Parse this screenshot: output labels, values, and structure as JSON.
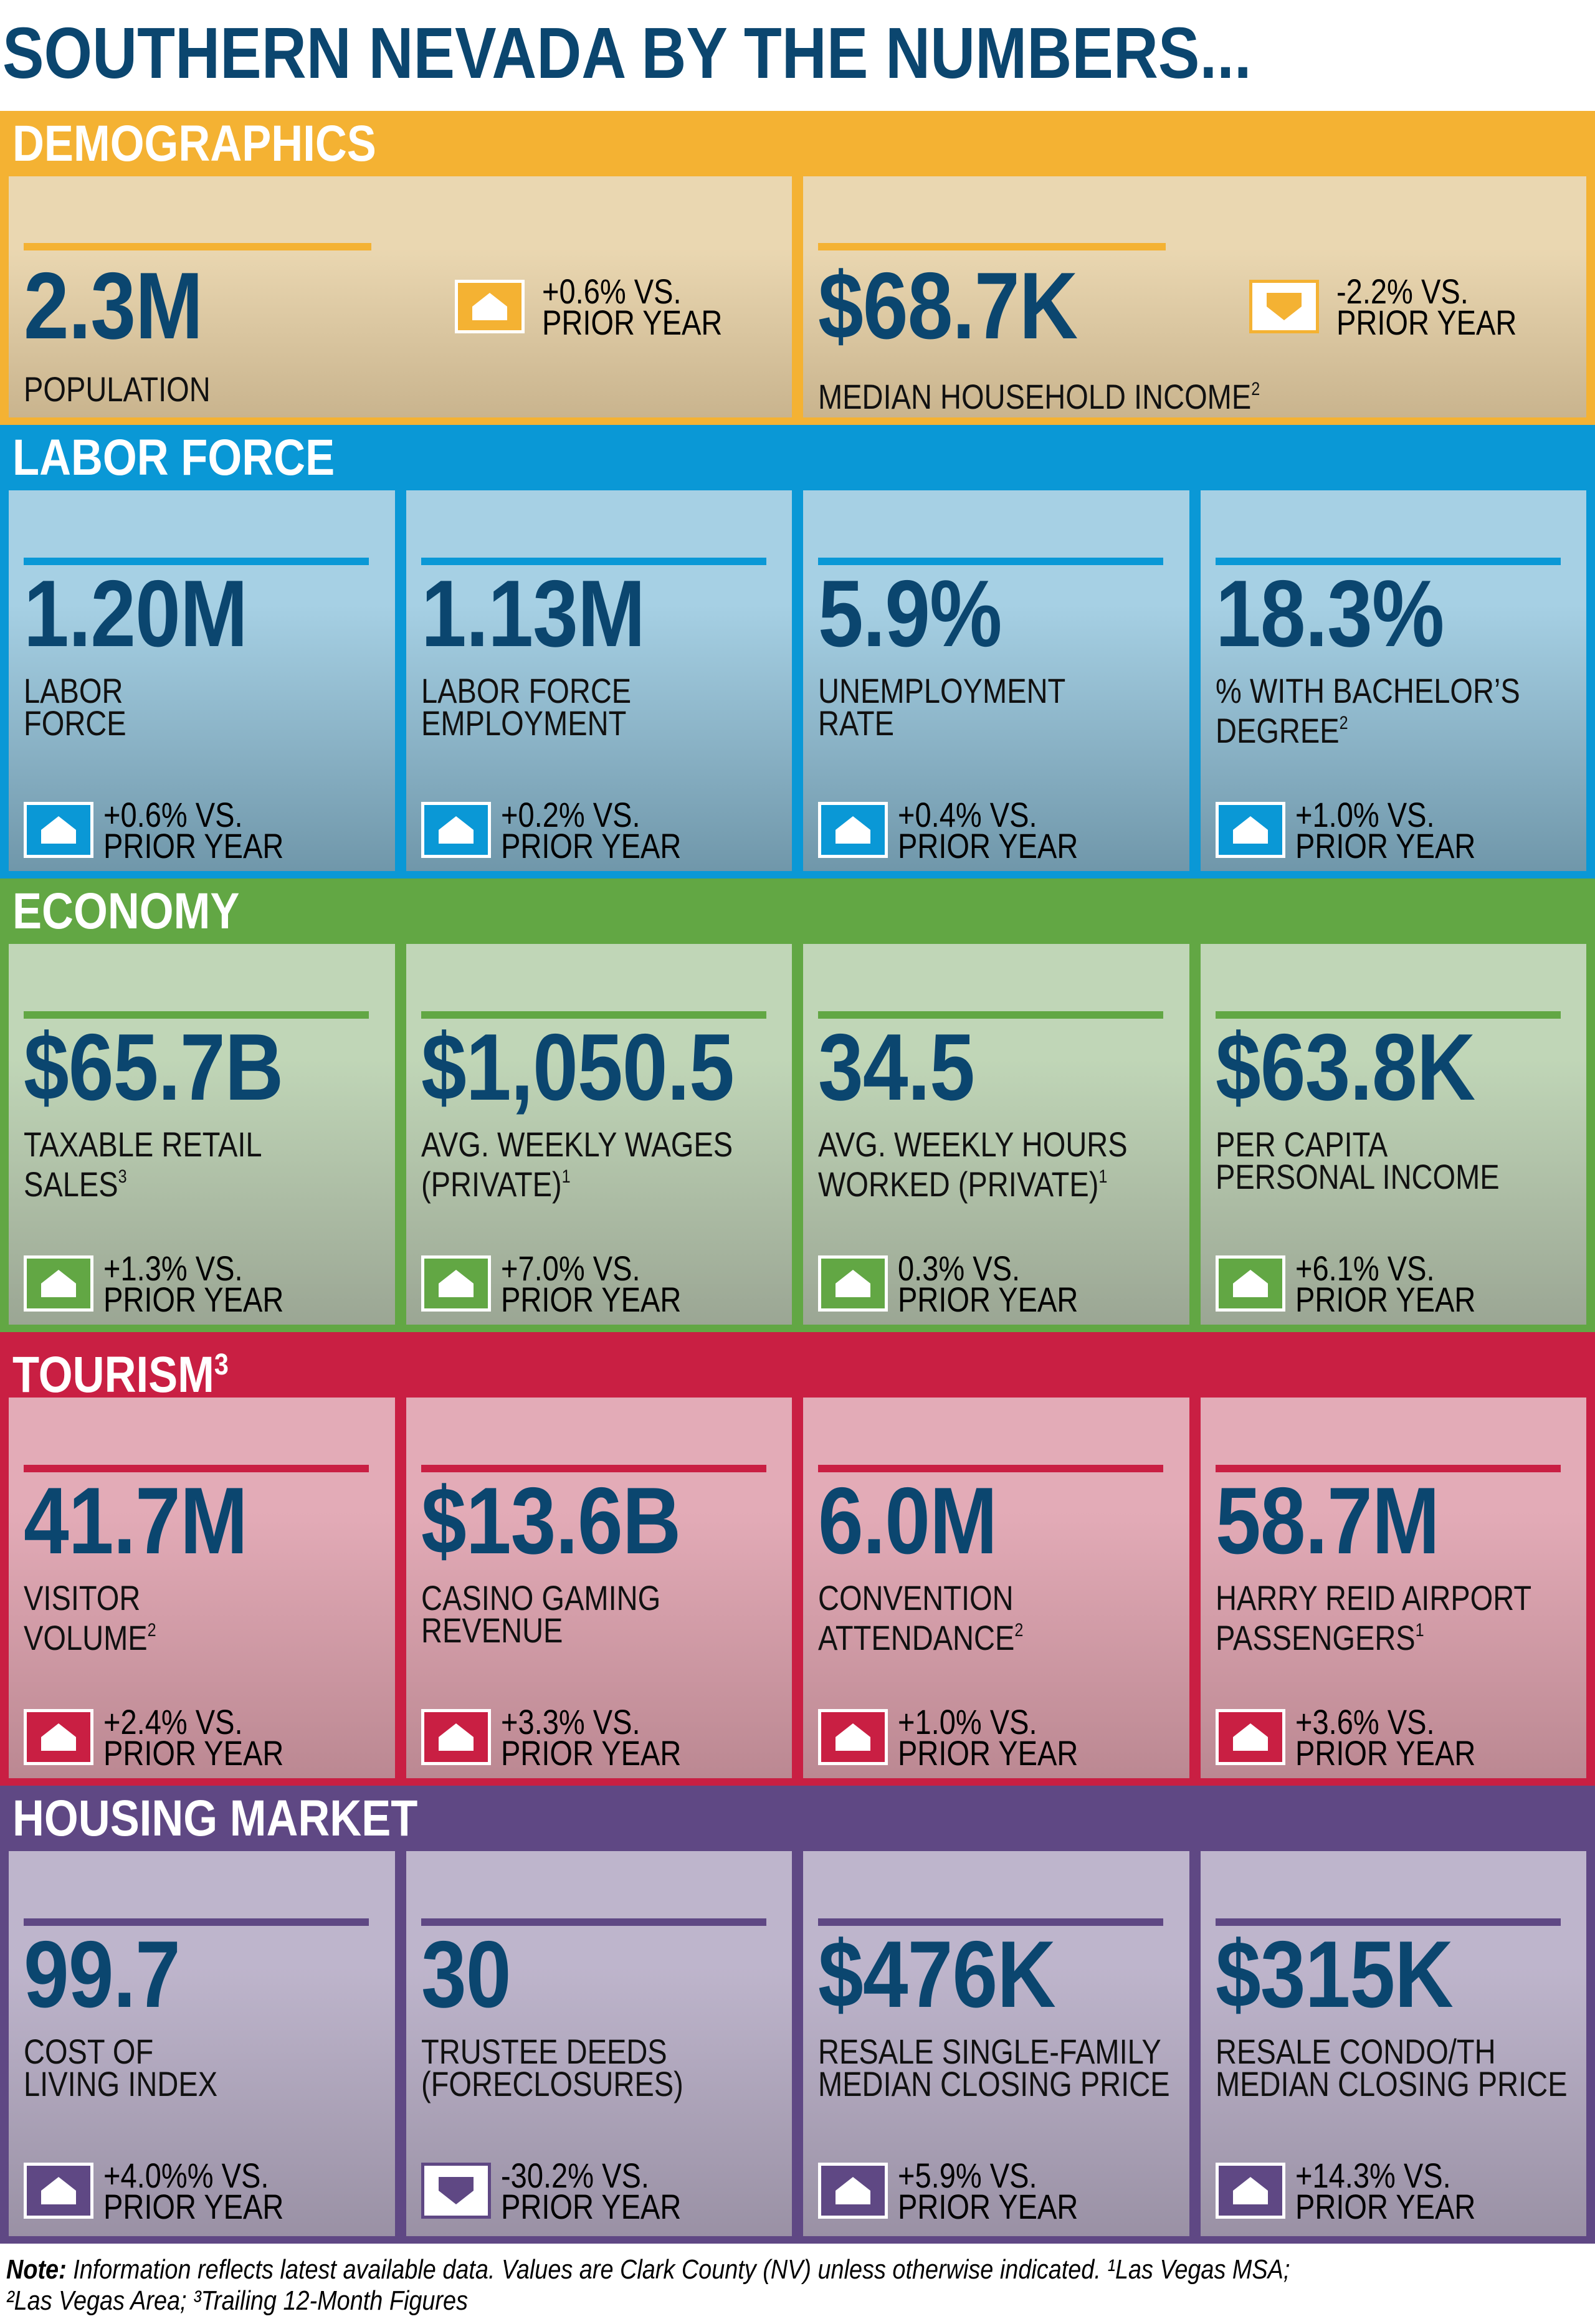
{
  "title": "SOUTHERN NEVADA BY THE NUMBERS...",
  "sections": [
    {
      "id": "demographics",
      "title": "DEMOGRAPHICS",
      "title_sup": "",
      "color": "#f4b233",
      "card_top": "#ead7b1",
      "card_bottom": "#c9b48e",
      "cards": [
        {
          "value": "2.3M",
          "label": "POPULATION",
          "sup": "",
          "change": "+0.6% VS.",
          "change2": "PRIOR YEAR",
          "direction": "up"
        },
        {
          "value": "$68.7K",
          "label": "MEDIAN HOUSEHOLD INCOME",
          "sup": "2",
          "change": "-2.2% VS.",
          "change2": "PRIOR YEAR",
          "direction": "down"
        }
      ]
    },
    {
      "id": "labor-force",
      "title": "LABOR FORCE",
      "title_sup": "",
      "color": "#0a98d6",
      "card_top": "#a6d0e4",
      "card_bottom": "#7097aa",
      "cards": [
        {
          "value": "1.20M",
          "label": "LABOR\nFORCE",
          "sup": "",
          "change": "+0.6% VS.",
          "change2": "PRIOR YEAR",
          "direction": "up"
        },
        {
          "value": "1.13M",
          "label": "LABOR FORCE\nEMPLOYMENT",
          "sup": "",
          "change": "+0.2% VS.",
          "change2": "PRIOR YEAR",
          "direction": "up"
        },
        {
          "value": "5.9%",
          "label": "UNEMPLOYMENT\nRATE",
          "sup": "",
          "change": "+0.4% VS.",
          "change2": "PRIOR YEAR",
          "direction": "up"
        },
        {
          "value": "18.3%",
          "label": "% WITH BACHELOR’S\nDEGREE",
          "sup": "2",
          "change": "+1.0% VS.",
          "change2": "PRIOR YEAR",
          "direction": "up"
        }
      ]
    },
    {
      "id": "economy",
      "title": "ECONOMY",
      "title_sup": "",
      "color": "#62a744",
      "card_top": "#c0d6b7",
      "card_bottom": "#9ba694",
      "cards": [
        {
          "value": "$65.7B",
          "label": "TAXABLE RETAIL\nSALES",
          "sup": "3",
          "change": "+1.3% VS.",
          "change2": "PRIOR YEAR",
          "direction": "up"
        },
        {
          "value": "$1,050.5",
          "label": "AVG. WEEKLY WAGES\n(PRIVATE)",
          "sup": "1",
          "change": "+7.0% VS.",
          "change2": "PRIOR YEAR",
          "direction": "up"
        },
        {
          "value": "34.5",
          "label": "AVG. WEEKLY HOURS\nWORKED (PRIVATE)",
          "sup": "1",
          "change": "0.3% VS.",
          "change2": "PRIOR YEAR",
          "direction": "up"
        },
        {
          "value": "$63.8K",
          "label": "PER CAPITA\nPERSONAL INCOME",
          "sup": "",
          "change": "+6.1% VS.",
          "change2": "PRIOR YEAR",
          "direction": "up"
        }
      ]
    },
    {
      "id": "tourism",
      "title": "TOURISM",
      "title_sup": "3",
      "color": "#c91f43",
      "card_top": "#e3abb7",
      "card_bottom": "#bb8892",
      "cards": [
        {
          "value": "41.7M",
          "label": "VISITOR\nVOLUME",
          "sup": "2",
          "change": "+2.4% VS.",
          "change2": "PRIOR YEAR",
          "direction": "up"
        },
        {
          "value": "$13.6B",
          "label": "CASINO GAMING\nREVENUE",
          "sup": "",
          "change": "+3.3% VS.",
          "change2": "PRIOR YEAR",
          "direction": "up"
        },
        {
          "value": "6.0M",
          "label": "CONVENTION\nATTENDANCE",
          "sup": "2",
          "change": "+1.0% VS.",
          "change2": "PRIOR YEAR",
          "direction": "up"
        },
        {
          "value": "58.7M",
          "label": "HARRY REID AIRPORT\nPASSENGERS",
          "sup": "1",
          "change": "+3.6% VS.",
          "change2": "PRIOR YEAR",
          "direction": "up"
        }
      ]
    },
    {
      "id": "housing-market",
      "title": "HOUSING MARKET",
      "title_sup": "",
      "color": "#5f4884",
      "card_top": "#beb5cc",
      "card_bottom": "#9a91a5",
      "cards": [
        {
          "value": "99.7",
          "label": "COST OF\nLIVING INDEX",
          "sup": "",
          "change": "+4.0%% VS.",
          "change2": "PRIOR YEAR",
          "direction": "up"
        },
        {
          "value": "30",
          "label": "TRUSTEE DEEDS\n(FORECLOSURES)",
          "sup": "",
          "change": "-30.2% VS.",
          "change2": "PRIOR YEAR",
          "direction": "down"
        },
        {
          "value": "$476K",
          "label": "RESALE SINGLE-FAMILY\nMEDIAN CLOSING PRICE",
          "sup": "",
          "change": "+5.9% VS.",
          "change2": "PRIOR YEAR",
          "direction": "up"
        },
        {
          "value": "$315K",
          "label": "RESALE CONDO/TH\nMEDIAN CLOSING PRICE",
          "sup": "",
          "change": "+14.3% VS.",
          "change2": "PRIOR YEAR",
          "direction": "up"
        }
      ]
    }
  ],
  "note": {
    "label": "Note:",
    "text": " Information reflects latest available data. Values are Clark County (NV) unless otherwise indicated. ¹Las Vegas MSA;",
    "text2": "²Las Vegas Area; ³Trailing 12-Month Figures"
  }
}
